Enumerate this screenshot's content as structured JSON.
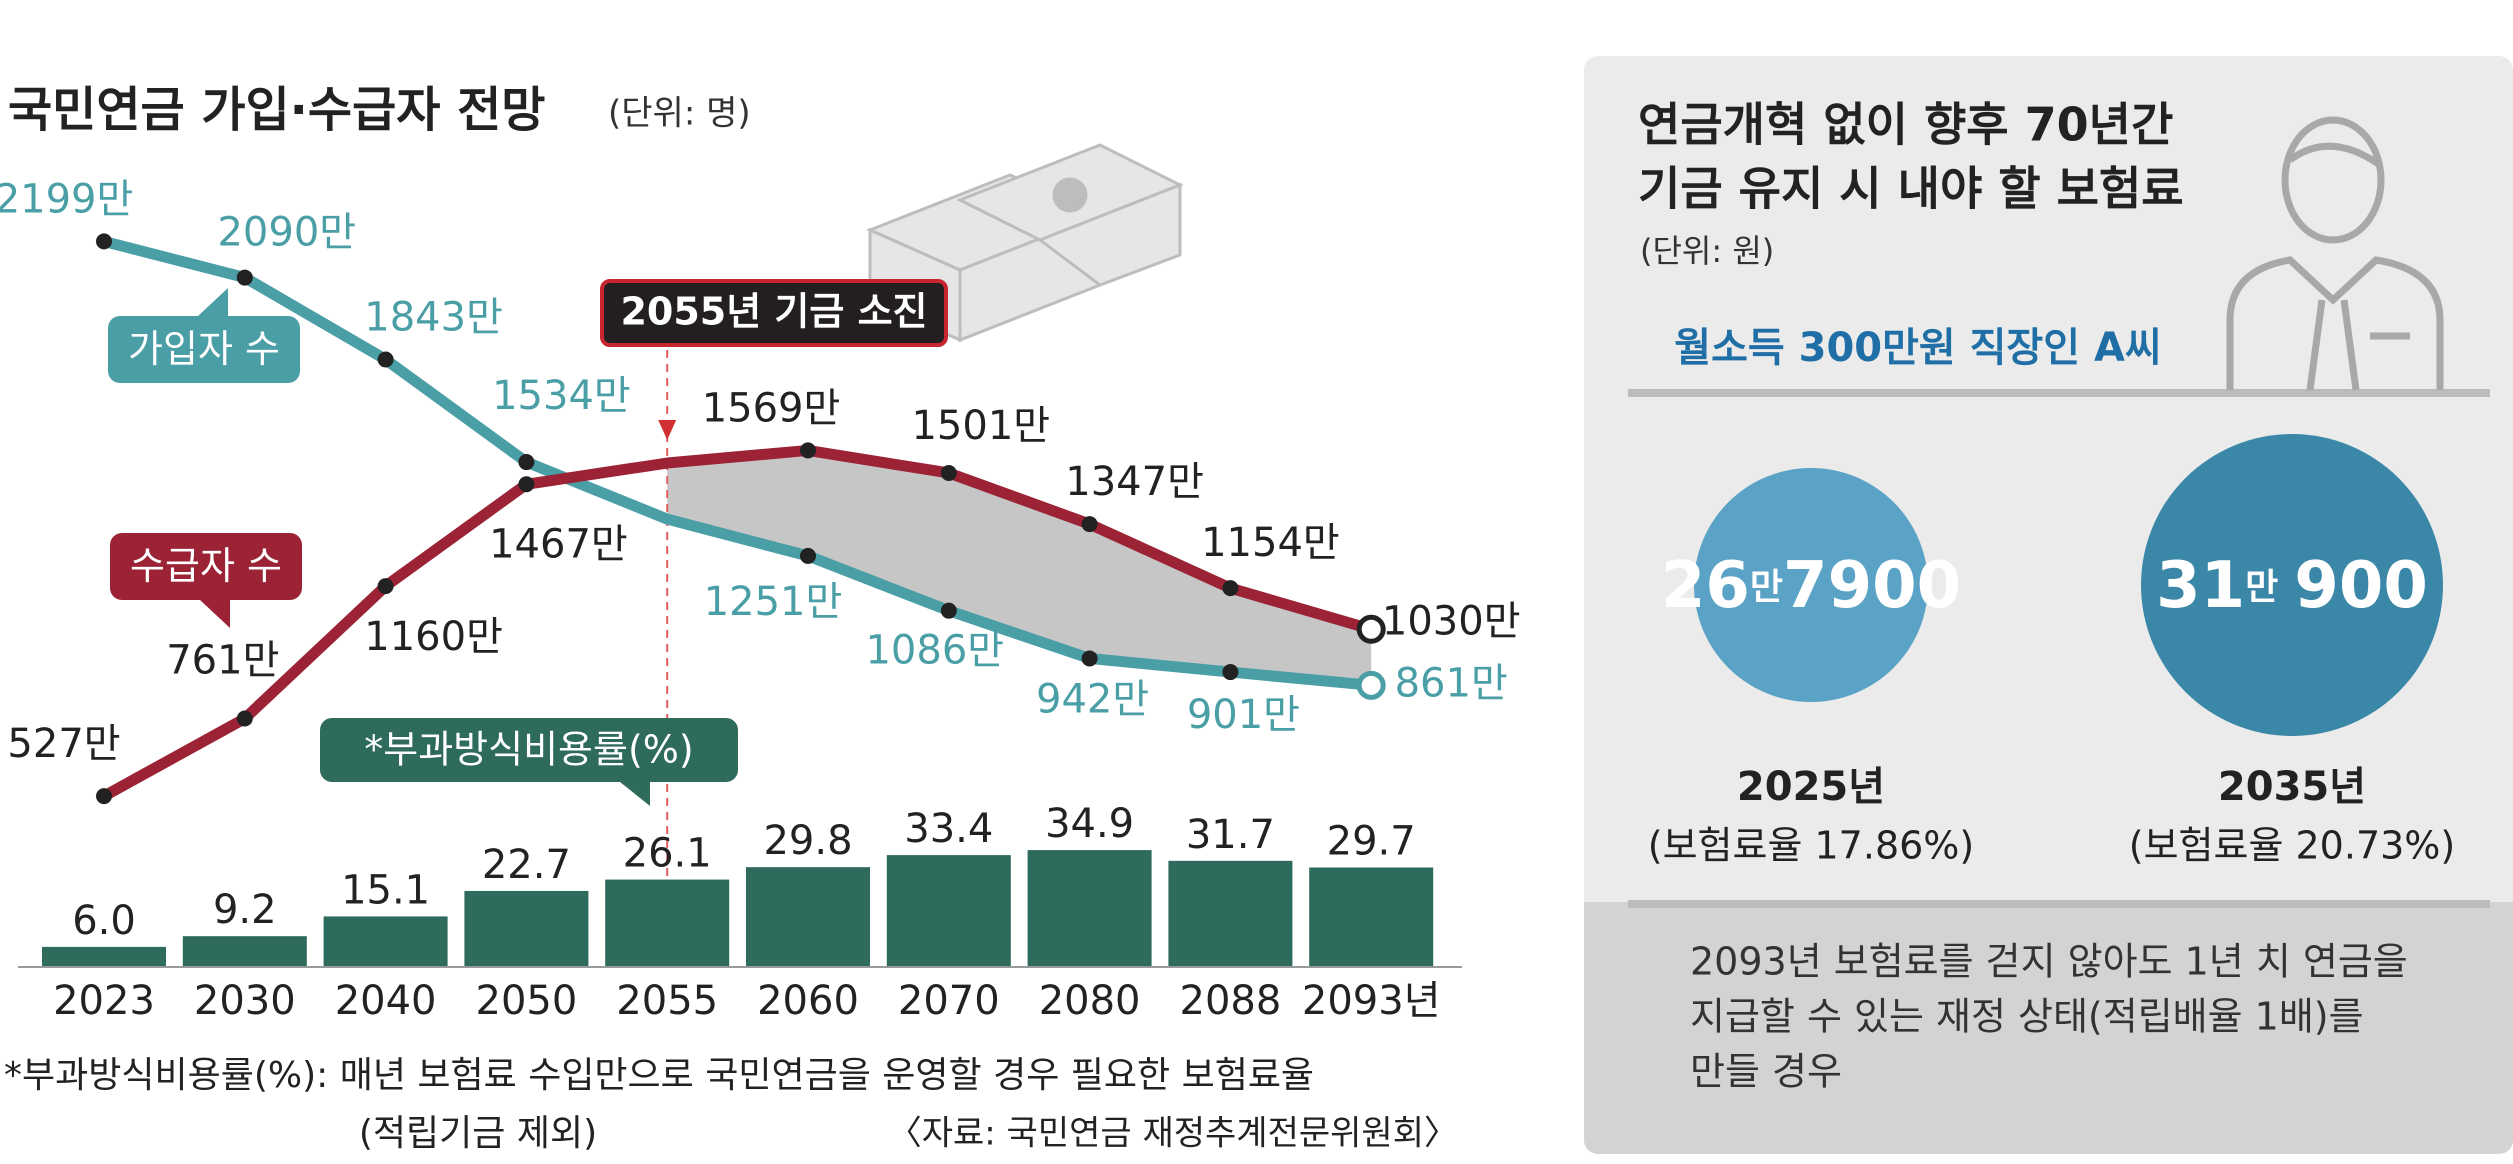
{
  "chart_data": {
    "type": "combo",
    "title": "국민연금 가입·수급자 전망",
    "unit": "(단위: 명)",
    "annotation": "2055년 기금 소진",
    "categories": [
      "2023",
      "2030",
      "2040",
      "2050",
      "2055",
      "2060",
      "2070",
      "2080",
      "2088",
      "2093년"
    ],
    "ylim": [
      0,
      2800
    ],
    "y2lim": [
      0,
      40
    ],
    "series": [
      {
        "name": "가입자 수",
        "type": "line",
        "color": "#4a9ea6",
        "values": [
          2199,
          2090,
          1843,
          1534,
          1362,
          1251,
          1086,
          942,
          901,
          861
        ],
        "value_labels": [
          "2199만",
          "2090만",
          "1843만",
          "1534만",
          null,
          "1251만",
          "1086만",
          "942만",
          "901만",
          "861만"
        ]
      },
      {
        "name": "수급자 수",
        "type": "line",
        "color": "#9b2335",
        "values": [
          527,
          761,
          1160,
          1467,
          1531,
          1569,
          1501,
          1347,
          1154,
          1030
        ],
        "value_labels": [
          "527만",
          "761만",
          "1160만",
          "1467만",
          null,
          "1569만",
          "1501만",
          "1347만",
          "1154만",
          "1030만"
        ]
      },
      {
        "name": "*부과방식비용률(%)",
        "type": "bar",
        "axis": "y2",
        "color": "#2f6b5c",
        "values": [
          6.0,
          9.2,
          15.1,
          22.7,
          26.1,
          29.8,
          33.4,
          34.9,
          31.7,
          29.7
        ],
        "value_labels": [
          "6.0",
          "9.2",
          "15.1",
          "22.7",
          "26.1",
          "29.8",
          "33.4",
          "34.9",
          "31.7",
          "29.7"
        ]
      }
    ],
    "note": "*부과방식비용률(%): 매년 보험료 수입만으로 국민연금을 운영할 경우 필요한 보험료율",
    "note2": "(적립기금 제외)",
    "source": "〈자료: 국민연금 재정추계전문위원회〉"
  },
  "panel": {
    "title": [
      "연금개혁 없이 향후 70년간",
      "기금 유지 시 내야 할 보험료"
    ],
    "unit": "(단위: 원)",
    "subtitle": "월소득 300만원 직장인 A씨",
    "items": [
      {
        "amount": [
          "26",
          "만",
          "7900"
        ],
        "year": "2025년",
        "rate": "(보험료율 17.86%)"
      },
      {
        "amount": [
          "31",
          "만",
          "900"
        ],
        "year": "2035년",
        "rate": "(보험료율 20.73%)"
      }
    ],
    "note": [
      "2093년 보험료를 걷지 않아도 1년 치 연금을",
      "지급할 수 있는 재정 상태(적립배율 1배)를",
      "만들 경우"
    ]
  }
}
